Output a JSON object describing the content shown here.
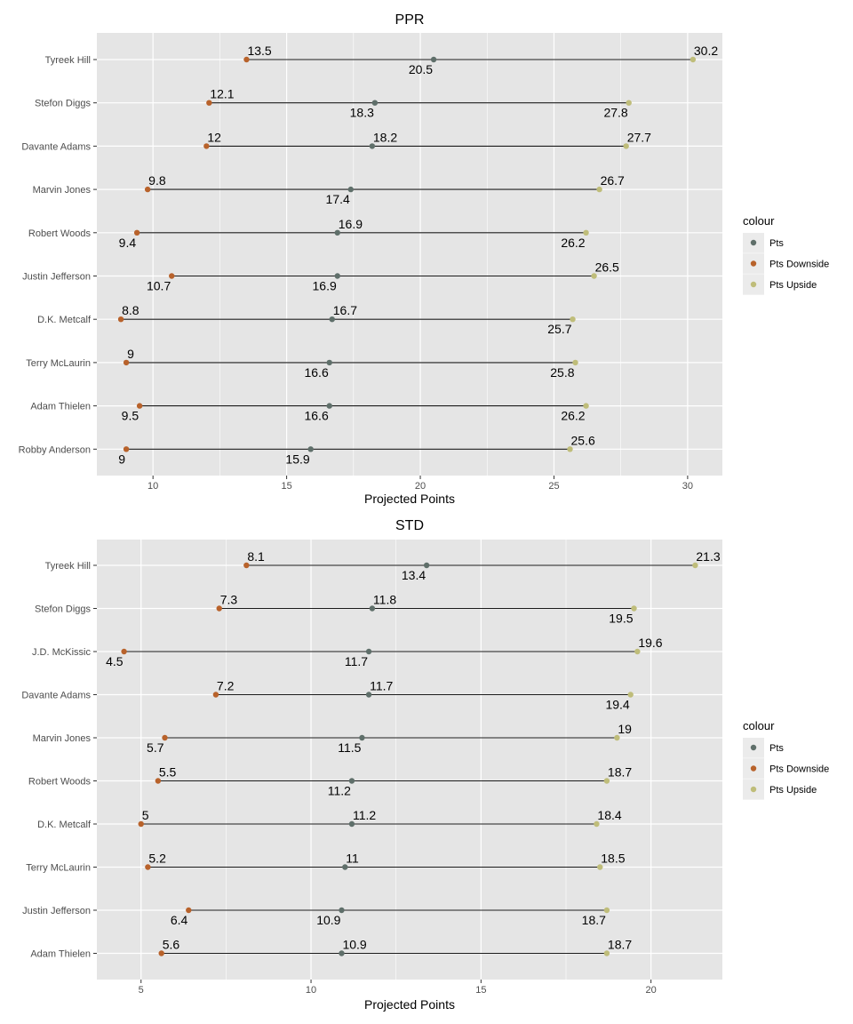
{
  "colors": {
    "Pts": "#5f6f6a",
    "Pts Downside": "#b8622b",
    "Pts Upside": "#bfbd7a",
    "panel_bg": "#e5e5e5",
    "grid": "#ffffff",
    "segment": "#1a1a1a"
  },
  "chart_data": [
    {
      "type": "dumbbell",
      "title": "PPR",
      "xlabel": "Projected Points",
      "ylabel": "",
      "xlim": [
        7.9,
        31.3
      ],
      "xticks": [
        10,
        15,
        20,
        25,
        30
      ],
      "grid": true,
      "legend": {
        "title": "colour",
        "position": "right",
        "entries": [
          "Pts",
          "Pts Downside",
          "Pts Upside"
        ]
      },
      "categories": [
        "Tyreek Hill",
        "Stefon Diggs",
        "Davante Adams",
        "Marvin Jones",
        "Robert Woods",
        "Justin Jefferson",
        "D.K. Metcalf",
        "Terry McLaurin",
        "Adam Thielen",
        "Robby Anderson"
      ],
      "series": [
        {
          "name": "Pts",
          "values": [
            20.5,
            18.3,
            18.2,
            17.4,
            16.9,
            16.9,
            16.7,
            16.6,
            16.6,
            15.9
          ]
        },
        {
          "name": "Pts Downside",
          "values": [
            13.5,
            12.1,
            12,
            9.8,
            9.4,
            10.7,
            8.8,
            9,
            9.5,
            9
          ]
        },
        {
          "name": "Pts Upside",
          "values": [
            30.2,
            27.8,
            27.7,
            26.7,
            26.2,
            26.5,
            25.7,
            25.8,
            26.2,
            25.6
          ]
        }
      ],
      "labels": [
        [
          {
            "text": "13.5",
            "series": "Pts Downside",
            "pos": "above"
          },
          {
            "text": "20.5",
            "series": "Pts",
            "pos": "below"
          },
          {
            "text": "30.2",
            "series": "Pts Upside",
            "pos": "above"
          }
        ],
        [
          {
            "text": "12.1",
            "series": "Pts Downside",
            "pos": "above"
          },
          {
            "text": "18.3",
            "series": "Pts",
            "pos": "below"
          },
          {
            "text": "27.8",
            "series": "Pts Upside",
            "pos": "below"
          }
        ],
        [
          {
            "text": "12",
            "series": "Pts Downside",
            "pos": "above"
          },
          {
            "text": "18.2",
            "series": "Pts",
            "pos": "above"
          },
          {
            "text": "27.7",
            "series": "Pts Upside",
            "pos": "above"
          }
        ],
        [
          {
            "text": "9.8",
            "series": "Pts Downside",
            "pos": "above"
          },
          {
            "text": "17.4",
            "series": "Pts",
            "pos": "below"
          },
          {
            "text": "26.7",
            "series": "Pts Upside",
            "pos": "above"
          }
        ],
        [
          {
            "text": "9.4",
            "series": "Pts Downside",
            "pos": "below"
          },
          {
            "text": "16.9",
            "series": "Pts",
            "pos": "above"
          },
          {
            "text": "26.2",
            "series": "Pts Upside",
            "pos": "below"
          }
        ],
        [
          {
            "text": "10.7",
            "series": "Pts Downside",
            "pos": "below"
          },
          {
            "text": "16.9",
            "series": "Pts",
            "pos": "below"
          },
          {
            "text": "26.5",
            "series": "Pts Upside",
            "pos": "above"
          }
        ],
        [
          {
            "text": "8.8",
            "series": "Pts Downside",
            "pos": "above"
          },
          {
            "text": "16.7",
            "series": "Pts",
            "pos": "above"
          },
          {
            "text": "25.7",
            "series": "Pts Upside",
            "pos": "below"
          }
        ],
        [
          {
            "text": "9",
            "series": "Pts Downside",
            "pos": "above"
          },
          {
            "text": "16.6",
            "series": "Pts",
            "pos": "below"
          },
          {
            "text": "25.8",
            "series": "Pts Upside",
            "pos": "below"
          }
        ],
        [
          {
            "text": "9.5",
            "series": "Pts Downside",
            "pos": "below"
          },
          {
            "text": "16.6",
            "series": "Pts",
            "pos": "below"
          },
          {
            "text": "26.2",
            "series": "Pts Upside",
            "pos": "below"
          }
        ],
        [
          {
            "text": "9",
            "series": "Pts Downside",
            "pos": "below"
          },
          {
            "text": "15.9",
            "series": "Pts",
            "pos": "below"
          },
          {
            "text": "25.6",
            "series": "Pts Upside",
            "pos": "above"
          }
        ]
      ]
    },
    {
      "type": "dumbbell",
      "title": "STD",
      "xlabel": "Projected Points",
      "ylabel": "",
      "xlim": [
        3.7,
        22.1
      ],
      "xticks": [
        5,
        10,
        15,
        20
      ],
      "grid": true,
      "legend": {
        "title": "colour",
        "position": "right",
        "entries": [
          "Pts",
          "Pts Downside",
          "Pts Upside"
        ]
      },
      "categories": [
        "Tyreek Hill",
        "Stefon Diggs",
        "J.D. McKissic",
        "Davante Adams",
        "Marvin Jones",
        "Robert Woods",
        "D.K. Metcalf",
        "Terry McLaurin",
        "Justin Jefferson",
        "Adam Thielen"
      ],
      "series": [
        {
          "name": "Pts",
          "values": [
            13.4,
            11.8,
            11.7,
            11.7,
            11.5,
            11.2,
            11.2,
            11,
            10.9,
            10.9
          ]
        },
        {
          "name": "Pts Downside",
          "values": [
            8.1,
            7.3,
            4.5,
            7.2,
            5.7,
            5.5,
            5,
            5.2,
            6.4,
            5.6
          ]
        },
        {
          "name": "Pts Upside",
          "values": [
            21.3,
            19.5,
            19.6,
            19.4,
            19,
            18.7,
            18.4,
            18.5,
            18.7,
            18.7
          ]
        }
      ],
      "labels": [
        [
          {
            "text": "8.1",
            "series": "Pts Downside",
            "pos": "above"
          },
          {
            "text": "13.4",
            "series": "Pts",
            "pos": "below"
          },
          {
            "text": "21.3",
            "series": "Pts Upside",
            "pos": "above"
          }
        ],
        [
          {
            "text": "7.3",
            "series": "Pts Downside",
            "pos": "above"
          },
          {
            "text": "11.8",
            "series": "Pts",
            "pos": "above"
          },
          {
            "text": "19.5",
            "series": "Pts Upside",
            "pos": "below"
          }
        ],
        [
          {
            "text": "4.5",
            "series": "Pts Downside",
            "pos": "below"
          },
          {
            "text": "11.7",
            "series": "Pts",
            "pos": "below"
          },
          {
            "text": "19.6",
            "series": "Pts Upside",
            "pos": "above"
          }
        ],
        [
          {
            "text": "7.2",
            "series": "Pts Downside",
            "pos": "above"
          },
          {
            "text": "11.7",
            "series": "Pts",
            "pos": "above"
          },
          {
            "text": "19.4",
            "series": "Pts Upside",
            "pos": "below"
          }
        ],
        [
          {
            "text": "5.7",
            "series": "Pts Downside",
            "pos": "below"
          },
          {
            "text": "11.5",
            "series": "Pts",
            "pos": "below"
          },
          {
            "text": "19",
            "series": "Pts Upside",
            "pos": "above"
          }
        ],
        [
          {
            "text": "5.5",
            "series": "Pts Downside",
            "pos": "above"
          },
          {
            "text": "11.2",
            "series": "Pts",
            "pos": "below"
          },
          {
            "text": "18.7",
            "series": "Pts Upside",
            "pos": "above"
          }
        ],
        [
          {
            "text": "5",
            "series": "Pts Downside",
            "pos": "above"
          },
          {
            "text": "11.2",
            "series": "Pts",
            "pos": "above"
          },
          {
            "text": "18.4",
            "series": "Pts Upside",
            "pos": "above"
          }
        ],
        [
          {
            "text": "5.2",
            "series": "Pts Downside",
            "pos": "above"
          },
          {
            "text": "11",
            "series": "Pts",
            "pos": "above"
          },
          {
            "text": "18.5",
            "series": "Pts Upside",
            "pos": "above"
          }
        ],
        [
          {
            "text": "6.4",
            "series": "Pts Downside",
            "pos": "below"
          },
          {
            "text": "10.9",
            "series": "Pts",
            "pos": "below"
          },
          {
            "text": "18.7",
            "series": "Pts Upside",
            "pos": "below"
          }
        ],
        [
          {
            "text": "5.6",
            "series": "Pts Downside",
            "pos": "above"
          },
          {
            "text": "10.9",
            "series": "Pts",
            "pos": "above"
          },
          {
            "text": "18.7",
            "series": "Pts Upside",
            "pos": "above"
          }
        ]
      ]
    }
  ]
}
